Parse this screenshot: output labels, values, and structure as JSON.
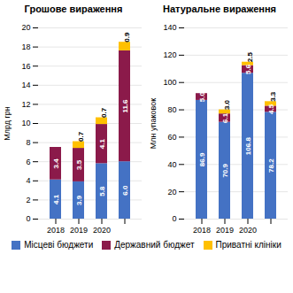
{
  "chart_data": [
    {
      "type": "bar",
      "stacked": true,
      "title": "Грошове вираження",
      "ylabel": "Млрд грн",
      "categories": [
        "2018",
        "2019",
        "2020",
        null
      ],
      "series": [
        {
          "name": "Місцеві бюджети",
          "color": "#4472c4",
          "values": [
            4.1,
            3.9,
            5.8,
            6.0
          ],
          "value_labels": [
            "4.1",
            "3.9",
            "5.8",
            "6.0"
          ]
        },
        {
          "name": "Державний бюджет",
          "color": "#8b1a4a",
          "values": [
            3.4,
            3.5,
            4.1,
            11.6
          ],
          "value_labels": [
            "3.4",
            "3.5",
            "4.1",
            "11.6"
          ]
        },
        {
          "name": "Приватні клініки",
          "color": "#ffc000",
          "values": [
            0.0,
            0.7,
            0.7,
            0.9
          ],
          "value_labels": [
            null,
            "0.7",
            "0.7",
            "0.9"
          ]
        }
      ],
      "ylim": [
        0,
        20
      ],
      "yticks": [
        0,
        2,
        4,
        6,
        8,
        10,
        12,
        14,
        16,
        18,
        20
      ],
      "grid": true,
      "data_labels": true,
      "legend": "bottom"
    },
    {
      "type": "bar",
      "stacked": true,
      "title": "Натуральне вираження",
      "ylabel": "Млн упаковок",
      "categories": [
        "2018",
        "2019",
        "2020",
        null
      ],
      "series": [
        {
          "name": "Місцеві бюджети",
          "color": "#4472c4",
          "values": [
            86.9,
            70.9,
            106.8,
            78.2
          ],
          "value_labels": [
            "86.9",
            "70.9",
            "106.8",
            "78.2"
          ]
        },
        {
          "name": "Державний бюджет",
          "color": "#8b1a4a",
          "values": [
            5.0,
            6.1,
            5.6,
            4.5
          ],
          "value_labels": [
            "5.0",
            "6.1",
            "5.6",
            "4.5"
          ]
        },
        {
          "name": "Приватні клініки",
          "color": "#ffc000",
          "values": [
            0.0,
            3.0,
            2.5,
            3.3
          ],
          "value_labels": [
            null,
            "3.0",
            "2.5",
            "3.3"
          ]
        }
      ],
      "ylim": [
        0,
        140
      ],
      "yticks": [
        0,
        20,
        40,
        60,
        80,
        100,
        120,
        140
      ],
      "grid": true,
      "data_labels": true,
      "legend": "bottom"
    }
  ]
}
